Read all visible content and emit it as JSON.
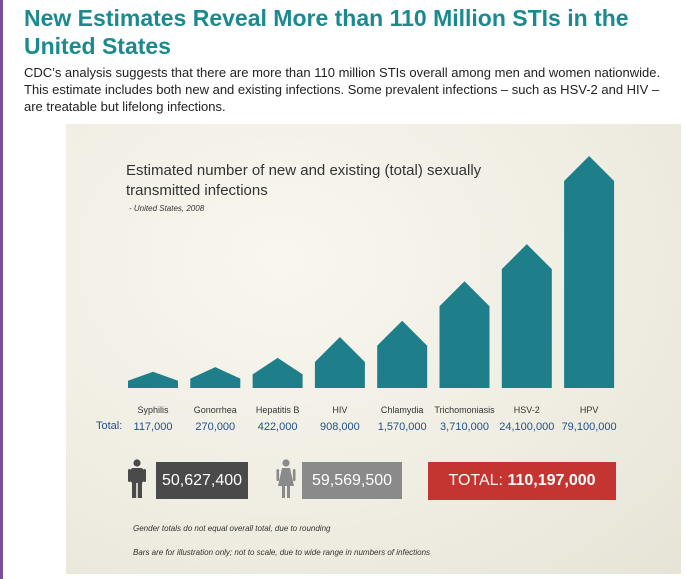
{
  "page": {
    "headline": "New Estimates Reveal More than 110 Million STIs in the United States",
    "intro": "CDC’s analysis suggests that there are more than 110 million STIs overall among men and women nationwide. This estimate includes both new and existing infections.  Some prevalent infections – such as HSV-2 and HIV – are treatable but lifelong infections."
  },
  "colors": {
    "headline": "#1b8a8e",
    "bar": "#1e7f8a",
    "total_values": "#1f4f8a",
    "men_box": "#4a4a4a",
    "women_box": "#8a8a8a",
    "total_box": "#c43532"
  },
  "icons": {
    "men": "man-icon",
    "women": "woman-icon"
  },
  "totals": {
    "row_label": "Total:",
    "men": "50,627,400",
    "women": "59,569,500",
    "overall_prefix": "TOTAL: ",
    "overall": "110,197,000"
  },
  "footnotes": [
    "Gender totals do not equal overall total, due to rounding",
    "Bars are for illustration only; not to scale, due to wide range in numbers of infections"
  ],
  "chart_data": {
    "type": "bar",
    "title": "Estimated number of new and existing (total) sexually transmitted infections",
    "subtitle": "- United States, 2008",
    "categories": [
      "Syphilis",
      "Gonorrhea",
      "Hepatitis B",
      "HIV",
      "Chlamydia",
      "Trichomoniasis",
      "HSV-2",
      "HPV"
    ],
    "values": [
      117000,
      270000,
      422000,
      908000,
      1570000,
      3710000,
      24100000,
      79100000
    ],
    "value_labels": [
      "117,000",
      "270,000",
      "422,000",
      "908,000",
      "1,570,000",
      "3,710,000",
      "24,100,000",
      "79,100,000"
    ],
    "illustrative_bar_heights": [
      0.07,
      0.09,
      0.13,
      0.22,
      0.29,
      0.46,
      0.62,
      1.0
    ],
    "note": "Bars are for illustration only; not to scale"
  }
}
